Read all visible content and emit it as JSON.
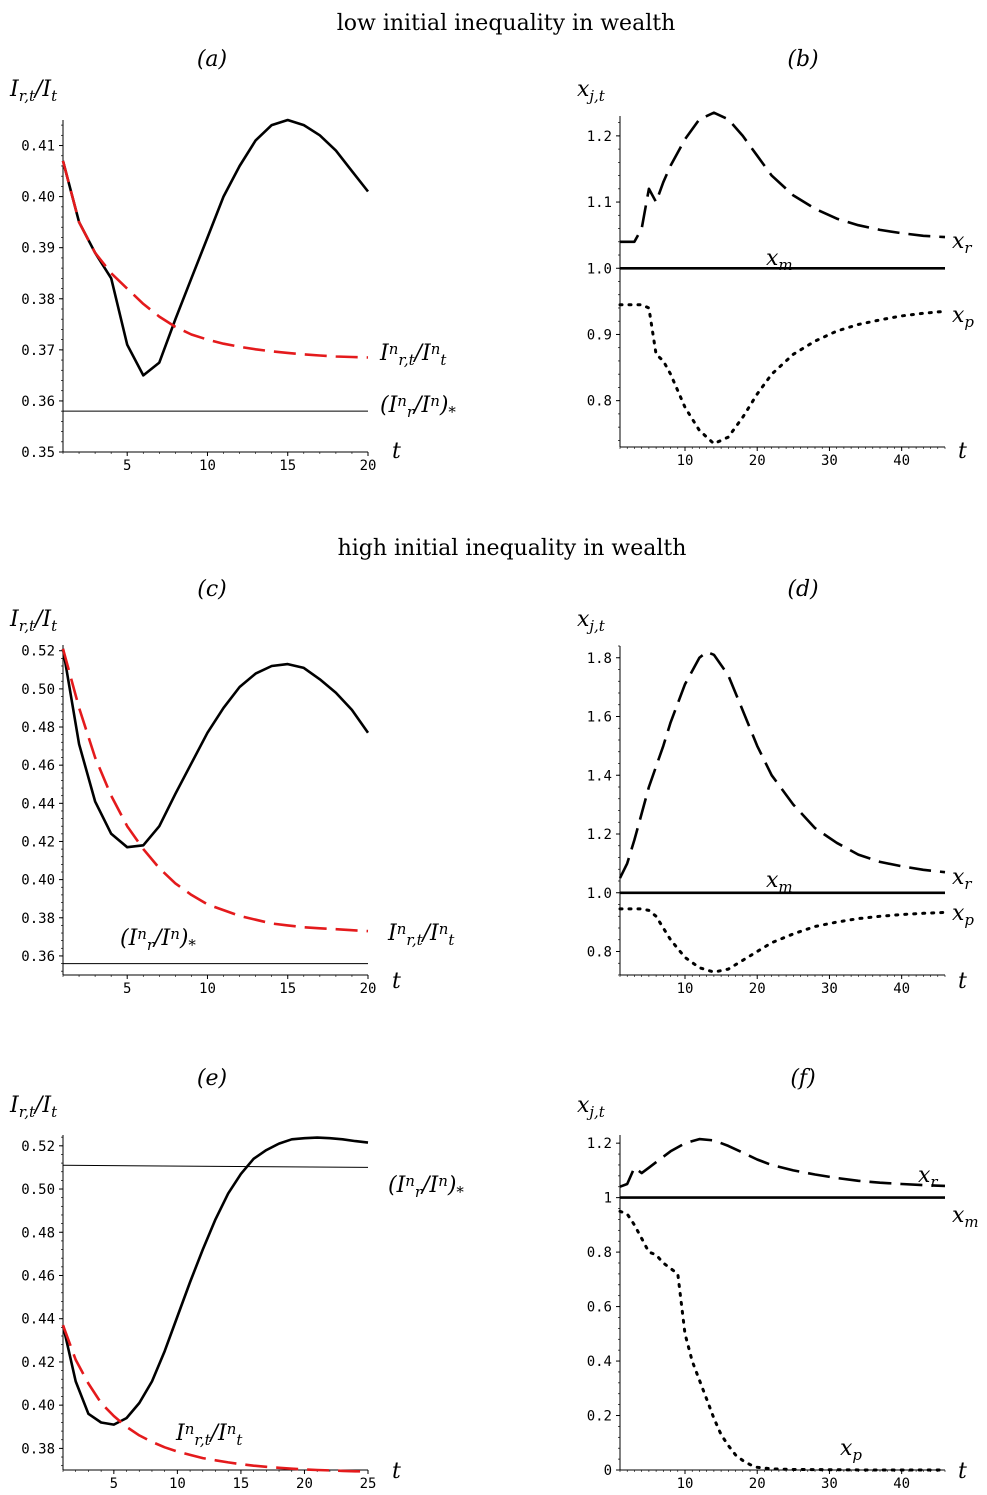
{
  "headings": {
    "low": "low initial inequality in wealth",
    "high": "high initial inequality in wealth"
  },
  "chart_data": [
    {
      "id": "a",
      "panel_label": "(a)",
      "type": "line",
      "ylabel": "I_{r,t}/I_t",
      "xlabel": "t",
      "xlim": [
        1,
        20
      ],
      "ylim": [
        0.35,
        0.415
      ],
      "xticks": [
        5,
        10,
        15,
        20
      ],
      "yticks": [
        0.35,
        0.36,
        0.37,
        0.38,
        0.39,
        0.4,
        0.41
      ],
      "ytick_labels": [
        "0.35",
        "0.36",
        "0.37",
        "0.38",
        "0.39",
        "0.40",
        "0.41"
      ],
      "series": [
        {
          "name": "",
          "style": "solid",
          "color": "#000000",
          "x": [
            1,
            2,
            3,
            4,
            5,
            6,
            7,
            8,
            9,
            10,
            11,
            12,
            13,
            14,
            15,
            16,
            17,
            18,
            19,
            20
          ],
          "y": [
            0.407,
            0.395,
            0.389,
            0.384,
            0.371,
            0.365,
            0.3675,
            0.376,
            0.384,
            0.392,
            0.4,
            0.406,
            0.411,
            0.414,
            0.415,
            0.414,
            0.412,
            0.409,
            0.405,
            0.401
          ]
        },
        {
          "name": "I^n_{r,t}/I^n_t",
          "style": "dashed",
          "color": "#e41a1c",
          "x": [
            1,
            2,
            3,
            4,
            5,
            6,
            7,
            8,
            9,
            10,
            11,
            12,
            13,
            14,
            15,
            16,
            17,
            18,
            19,
            20
          ],
          "y": [
            0.407,
            0.395,
            0.389,
            0.385,
            0.382,
            0.379,
            0.3765,
            0.3745,
            0.373,
            0.372,
            0.3712,
            0.3706,
            0.3701,
            0.3697,
            0.3694,
            0.3691,
            0.3689,
            0.3687,
            0.3686,
            0.3685
          ]
        },
        {
          "name": "(I^n_r/I^n)_*",
          "style": "thin",
          "color": "#000000",
          "x": [
            1,
            20
          ],
          "y": [
            0.358,
            0.358
          ]
        }
      ]
    },
    {
      "id": "b",
      "panel_label": "(b)",
      "type": "line",
      "ylabel": "x_{j,t}",
      "xlabel": "t",
      "xlim": [
        1,
        46
      ],
      "ylim": [
        0.73,
        1.23
      ],
      "xticks": [
        10,
        20,
        30,
        40
      ],
      "yticks": [
        0.8,
        0.9,
        1.0,
        1.1,
        1.2
      ],
      "ytick_labels": [
        "0.8",
        "0.9",
        "1.0",
        "1.1",
        "1.2"
      ],
      "series": [
        {
          "name": "x_r",
          "style": "dashed",
          "color": "#000000",
          "x": [
            1,
            2,
            3,
            4,
            5,
            6,
            7,
            8,
            10,
            12,
            14,
            16,
            18,
            20,
            22,
            25,
            28,
            31,
            34,
            37,
            40,
            43,
            46
          ],
          "y": [
            1.04,
            1.04,
            1.04,
            1.06,
            1.12,
            1.1,
            1.13,
            1.155,
            1.195,
            1.225,
            1.235,
            1.225,
            1.2,
            1.17,
            1.14,
            1.11,
            1.09,
            1.075,
            1.065,
            1.058,
            1.053,
            1.049,
            1.047
          ]
        },
        {
          "name": "x_m",
          "style": "solid",
          "color": "#000000",
          "x": [
            1,
            46
          ],
          "y": [
            1.0,
            1.0
          ]
        },
        {
          "name": "x_p",
          "style": "dotted",
          "color": "#000000",
          "x": [
            1,
            2,
            3,
            4,
            5,
            6,
            7,
            8,
            10,
            12,
            14,
            16,
            18,
            20,
            22,
            25,
            28,
            31,
            34,
            37,
            40,
            43,
            46
          ],
          "y": [
            0.945,
            0.945,
            0.945,
            0.945,
            0.94,
            0.87,
            0.86,
            0.84,
            0.79,
            0.755,
            0.735,
            0.745,
            0.775,
            0.81,
            0.84,
            0.87,
            0.89,
            0.905,
            0.915,
            0.922,
            0.928,
            0.932,
            0.935
          ]
        }
      ]
    },
    {
      "id": "c",
      "panel_label": "(c)",
      "type": "line",
      "ylabel": "I_{r,t}/I_t",
      "xlabel": "t",
      "xlim": [
        1,
        20
      ],
      "ylim": [
        0.35,
        0.523
      ],
      "xticks": [
        5,
        10,
        15,
        20
      ],
      "yticks": [
        0.36,
        0.38,
        0.4,
        0.42,
        0.44,
        0.46,
        0.48,
        0.5,
        0.52
      ],
      "ytick_labels": [
        "0.36",
        "0.38",
        "0.40",
        "0.42",
        "0.44",
        "0.46",
        "0.48",
        "0.50",
        "0.52"
      ],
      "series": [
        {
          "name": "",
          "style": "solid",
          "color": "#000000",
          "x": [
            1,
            2,
            3,
            4,
            5,
            6,
            7,
            8,
            9,
            10,
            11,
            12,
            13,
            14,
            15,
            16,
            17,
            18,
            19,
            20
          ],
          "y": [
            0.521,
            0.471,
            0.441,
            0.424,
            0.417,
            0.418,
            0.428,
            0.445,
            0.461,
            0.477,
            0.49,
            0.501,
            0.508,
            0.512,
            0.513,
            0.511,
            0.505,
            0.498,
            0.489,
            0.477
          ]
        },
        {
          "name": "I^n_{r,t}/I^n_t",
          "style": "dashed",
          "color": "#e41a1c",
          "x": [
            1,
            2,
            3,
            4,
            5,
            6,
            7,
            8,
            9,
            10,
            11,
            12,
            13,
            14,
            15,
            16,
            17,
            18,
            19,
            20
          ],
          "y": [
            0.521,
            0.49,
            0.464,
            0.444,
            0.428,
            0.416,
            0.406,
            0.398,
            0.392,
            0.387,
            0.384,
            0.381,
            0.379,
            0.377,
            0.376,
            0.375,
            0.3745,
            0.374,
            0.3735,
            0.373
          ]
        },
        {
          "name": "(I^n_r/I^n)_*",
          "style": "thin",
          "color": "#000000",
          "x": [
            1,
            20
          ],
          "y": [
            0.356,
            0.356
          ]
        }
      ]
    },
    {
      "id": "d",
      "panel_label": "(d)",
      "type": "line",
      "ylabel": "x_{j,t}",
      "xlabel": "t",
      "xlim": [
        1,
        46
      ],
      "ylim": [
        0.72,
        1.84
      ],
      "xticks": [
        10,
        20,
        30,
        40
      ],
      "yticks": [
        0.8,
        1.0,
        1.2,
        1.4,
        1.6,
        1.8
      ],
      "ytick_labels": [
        "0.8",
        "1.0",
        "1.2",
        "1.4",
        "1.6",
        "1.8"
      ],
      "series": [
        {
          "name": "x_r",
          "style": "dashed",
          "color": "#000000",
          "x": [
            1,
            2,
            3,
            4,
            5,
            6,
            7,
            8,
            10,
            12,
            13,
            14,
            16,
            18,
            20,
            22,
            25,
            28,
            31,
            34,
            37,
            40,
            43,
            46
          ],
          "y": [
            1.05,
            1.1,
            1.18,
            1.27,
            1.36,
            1.43,
            1.5,
            1.58,
            1.71,
            1.8,
            1.82,
            1.81,
            1.74,
            1.62,
            1.5,
            1.4,
            1.3,
            1.22,
            1.17,
            1.13,
            1.105,
            1.09,
            1.078,
            1.07
          ]
        },
        {
          "name": "x_m",
          "style": "solid",
          "color": "#000000",
          "x": [
            1,
            46
          ],
          "y": [
            1.0,
            1.0
          ]
        },
        {
          "name": "x_p",
          "style": "dotted",
          "color": "#000000",
          "x": [
            1,
            2,
            3,
            4,
            5,
            6,
            7,
            8,
            10,
            12,
            14,
            16,
            18,
            20,
            22,
            25,
            28,
            31,
            34,
            37,
            40,
            43,
            46
          ],
          "y": [
            0.945,
            0.945,
            0.945,
            0.945,
            0.94,
            0.92,
            0.88,
            0.84,
            0.78,
            0.745,
            0.73,
            0.74,
            0.77,
            0.8,
            0.83,
            0.86,
            0.885,
            0.9,
            0.912,
            0.92,
            0.926,
            0.93,
            0.933
          ]
        }
      ]
    },
    {
      "id": "e",
      "panel_label": "(e)",
      "type": "line",
      "ylabel": "I_{r,t}/I_t",
      "xlabel": "t",
      "xlim": [
        1,
        25
      ],
      "ylim": [
        0.37,
        0.525
      ],
      "xticks": [
        5,
        10,
        15,
        20,
        25
      ],
      "yticks": [
        0.38,
        0.4,
        0.42,
        0.44,
        0.46,
        0.48,
        0.5,
        0.52
      ],
      "ytick_labels": [
        "0.38",
        "0.40",
        "0.42",
        "0.44",
        "0.46",
        "0.48",
        "0.50",
        "0.52"
      ],
      "series": [
        {
          "name": "",
          "style": "solid",
          "color": "#000000",
          "x": [
            1,
            2,
            3,
            4,
            5,
            6,
            7,
            8,
            9,
            10,
            11,
            12,
            13,
            14,
            15,
            16,
            17,
            18,
            19,
            20,
            21,
            22,
            23,
            24,
            25
          ],
          "y": [
            0.437,
            0.411,
            0.396,
            0.392,
            0.391,
            0.394,
            0.401,
            0.411,
            0.425,
            0.441,
            0.457,
            0.472,
            0.486,
            0.498,
            0.507,
            0.514,
            0.518,
            0.521,
            0.523,
            0.5235,
            0.5238,
            0.5235,
            0.523,
            0.5222,
            0.5215
          ]
        },
        {
          "name": "I^n_{r,t}/I^n_t",
          "style": "dashed",
          "color": "#e41a1c",
          "x": [
            1,
            2,
            3,
            4,
            5,
            6,
            7,
            8,
            9,
            10,
            11,
            12,
            13,
            14,
            15,
            16,
            17,
            18,
            19,
            20,
            21,
            22,
            23,
            24,
            25
          ],
          "y": [
            0.437,
            0.421,
            0.41,
            0.401,
            0.395,
            0.39,
            0.386,
            0.383,
            0.3805,
            0.3785,
            0.377,
            0.3755,
            0.3745,
            0.3735,
            0.3727,
            0.372,
            0.3715,
            0.371,
            0.3706,
            0.3703,
            0.37,
            0.3698,
            0.3696,
            0.3694,
            0.3693
          ]
        },
        {
          "name": "(I^n_r/I^n)_*",
          "style": "thin",
          "color": "#000000",
          "x": [
            1,
            25
          ],
          "y": [
            0.511,
            0.51
          ]
        }
      ]
    },
    {
      "id": "f",
      "panel_label": "(f)",
      "type": "line",
      "ylabel": "x_{j,t}",
      "xlabel": "t",
      "xlim": [
        1,
        46
      ],
      "ylim": [
        0,
        1.23
      ],
      "xticks": [
        10,
        20,
        30,
        40
      ],
      "yticks": [
        0,
        0.2,
        0.4,
        0.6,
        0.8,
        1,
        1.2
      ],
      "ytick_labels": [
        "0",
        "0.2",
        "0.4",
        "0.6",
        "0.8",
        "1",
        "1.2"
      ],
      "series": [
        {
          "name": "x_r",
          "style": "dashed",
          "color": "#000000",
          "x": [
            1,
            2,
            3,
            4,
            5,
            6,
            8,
            10,
            12,
            14,
            16,
            18,
            20,
            22,
            25,
            28,
            31,
            34,
            37,
            40,
            43,
            46
          ],
          "y": [
            1.04,
            1.05,
            1.11,
            1.09,
            1.11,
            1.13,
            1.17,
            1.2,
            1.215,
            1.21,
            1.19,
            1.165,
            1.14,
            1.12,
            1.1,
            1.085,
            1.072,
            1.062,
            1.055,
            1.05,
            1.046,
            1.043
          ]
        },
        {
          "name": "x_m",
          "style": "solid",
          "color": "#000000",
          "x": [
            1,
            46
          ],
          "y": [
            1.0,
            1.0
          ]
        },
        {
          "name": "x_p",
          "style": "dotted",
          "color": "#000000",
          "x": [
            1,
            2,
            3,
            4,
            5,
            6,
            7,
            8,
            9,
            10,
            11,
            12,
            13,
            14,
            15,
            16,
            17,
            18,
            19,
            20,
            22,
            25,
            30,
            35,
            40,
            46
          ],
          "y": [
            0.95,
            0.94,
            0.9,
            0.85,
            0.8,
            0.79,
            0.76,
            0.74,
            0.72,
            0.5,
            0.4,
            0.33,
            0.26,
            0.19,
            0.13,
            0.09,
            0.055,
            0.035,
            0.02,
            0.01,
            0.004,
            0.002,
            0.001,
            0.0,
            0.0,
            0.0
          ]
        }
      ]
    }
  ]
}
